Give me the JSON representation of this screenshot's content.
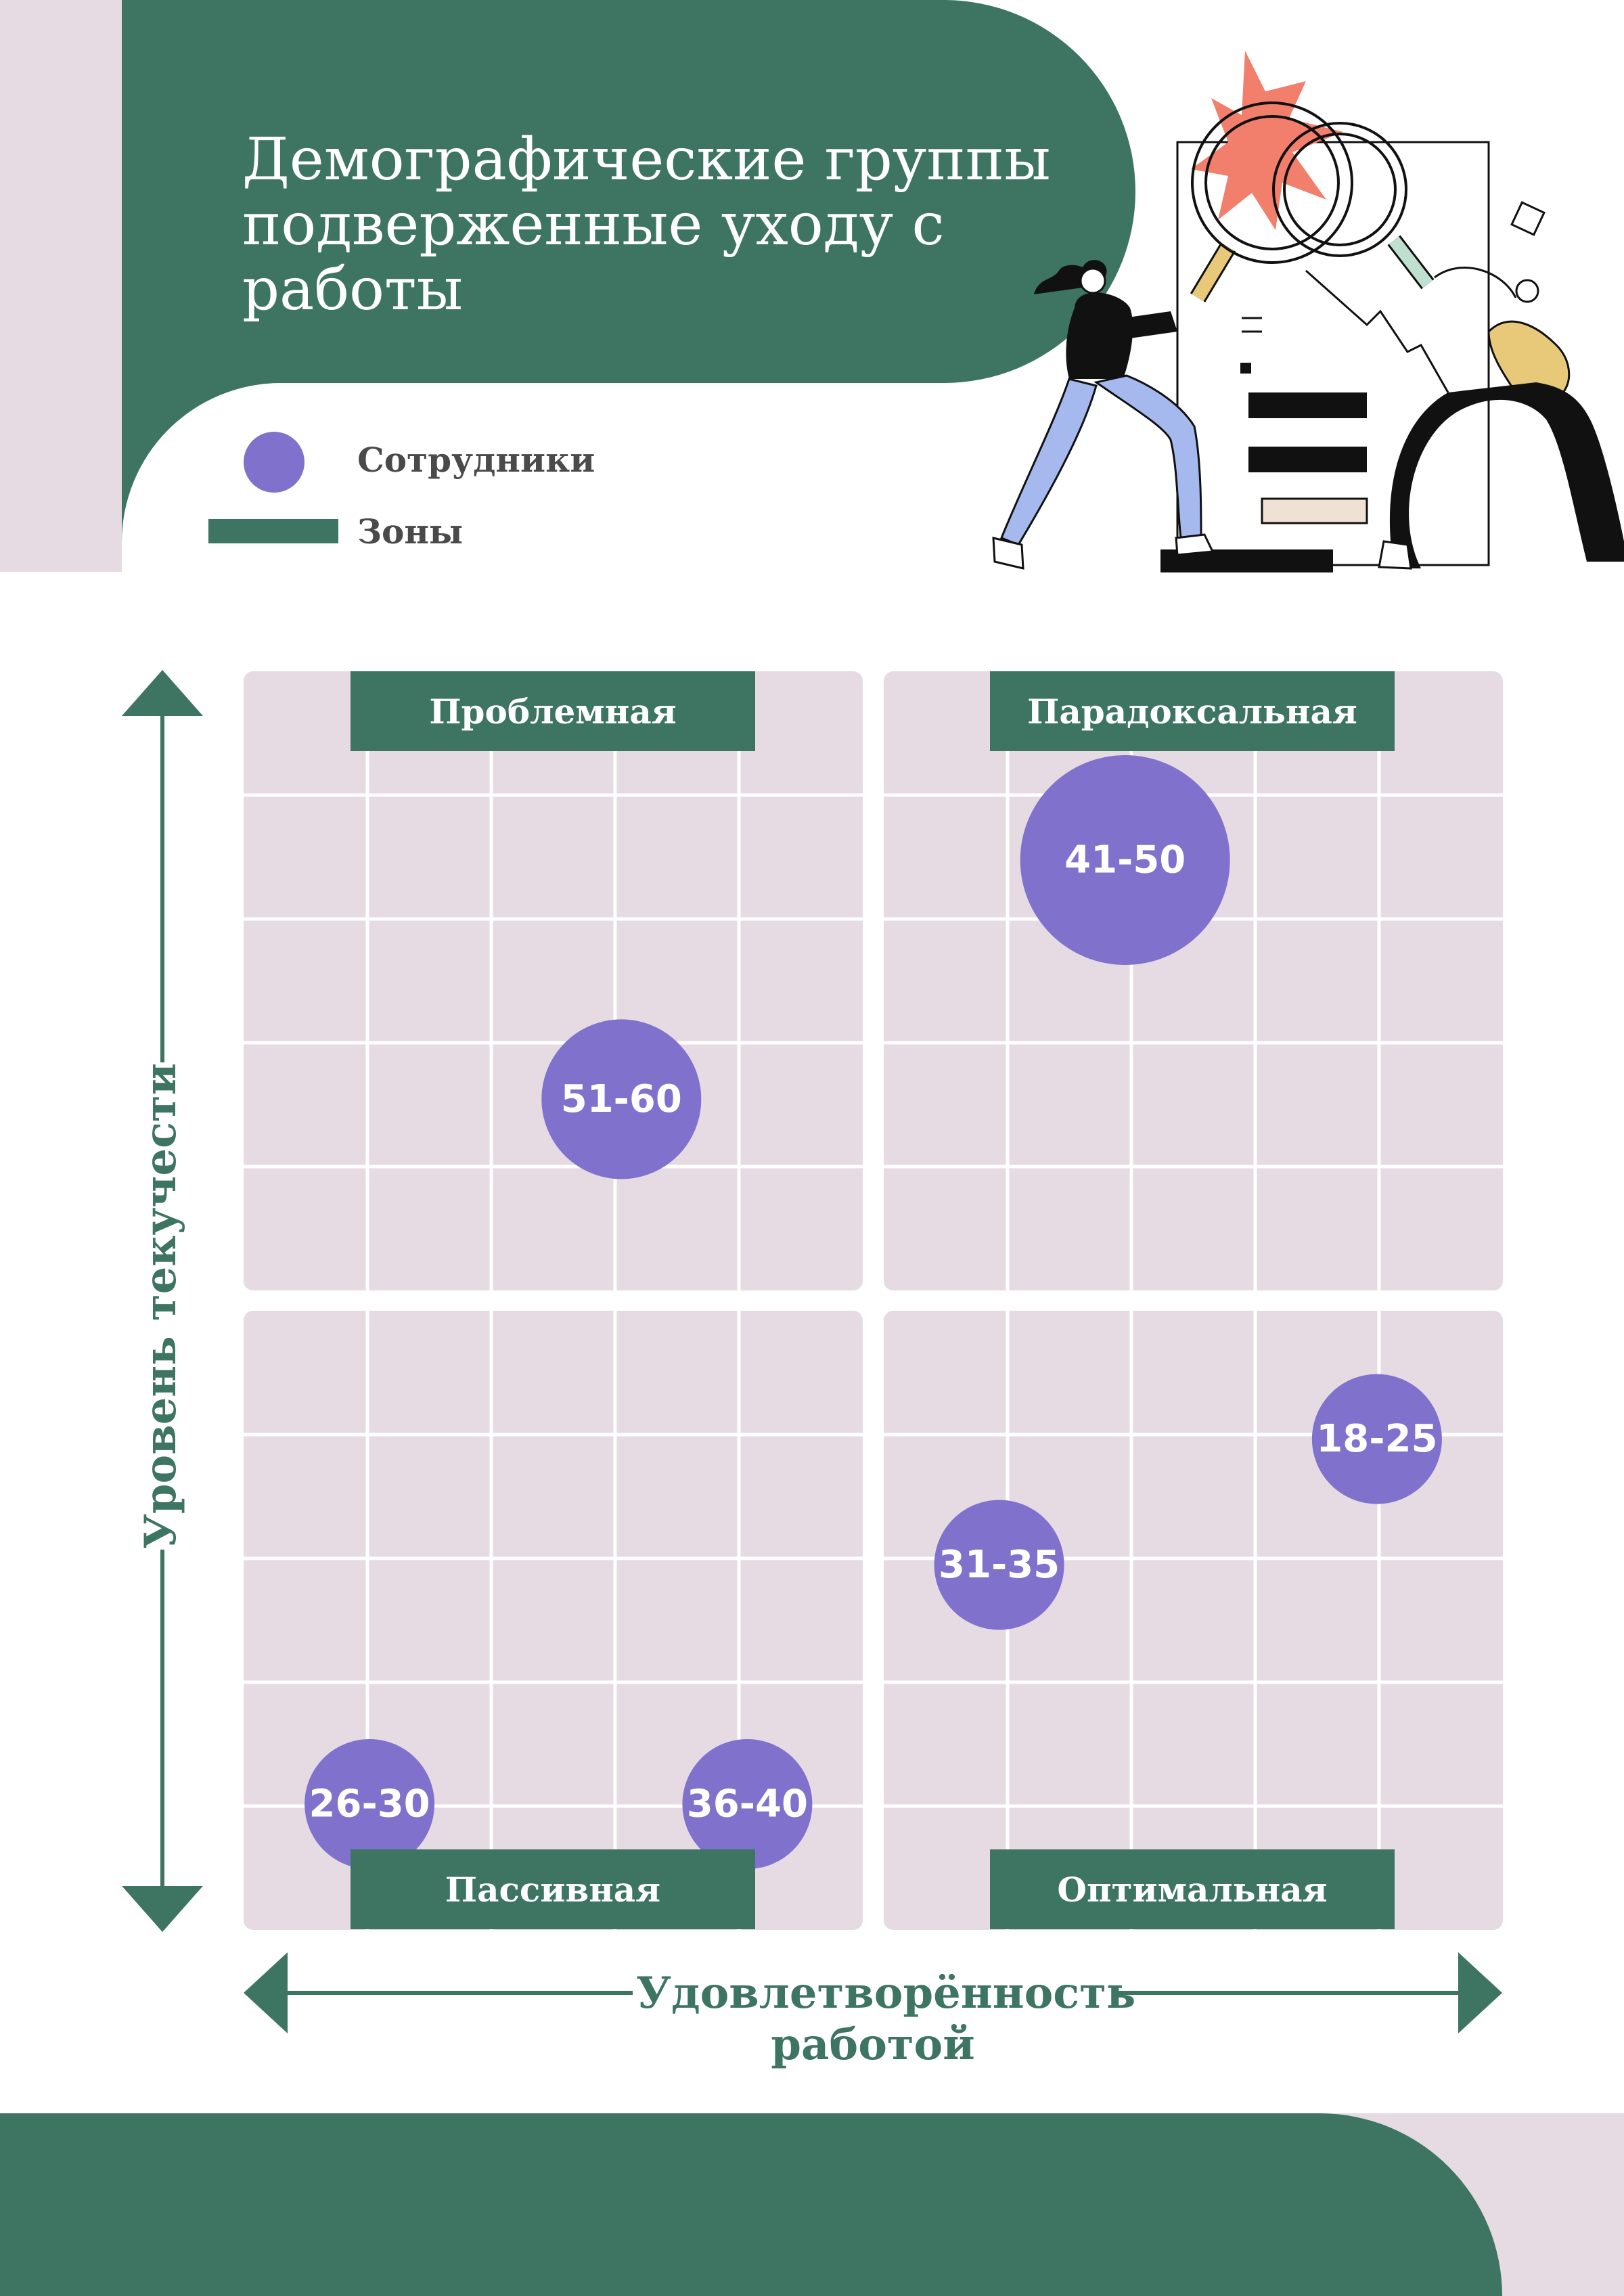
{
  "header": {
    "title_lines": [
      "Демографические группы",
      "подверженные уходу с",
      "работы"
    ]
  },
  "legend": {
    "employees_label": "Сотрудники",
    "zones_label": "Зоны"
  },
  "colors": {
    "green": "#3d7562",
    "mauve": "#e6dbe3",
    "purple": "#8072cc",
    "white": "#ffffff"
  },
  "chart_data": {
    "type": "scatter",
    "xlabel": "Удовлетворённость работой",
    "ylabel": "Уровень текучести",
    "xlabel_lines": [
      "Удовлетворённость",
      "работой"
    ],
    "quadrants": {
      "top_left": "Проблемная",
      "top_right": "Парадоксальная",
      "bottom_left": "Пассивная",
      "bottom_right": "Оптимальная"
    },
    "grid": true,
    "points": [
      {
        "label": "41-50",
        "x": 7,
        "y": 8.5,
        "size": "large"
      },
      {
        "label": "51-60",
        "x": 3,
        "y": 6.6,
        "size": "medium"
      },
      {
        "label": "18-25",
        "x": 9,
        "y": 3.9,
        "size": "small"
      },
      {
        "label": "31-35",
        "x": 6,
        "y": 2.9,
        "size": "small"
      },
      {
        "label": "26-30",
        "x": 1,
        "y": 1,
        "size": "small"
      },
      {
        "label": "36-40",
        "x": 4,
        "y": 1,
        "size": "small"
      }
    ]
  }
}
